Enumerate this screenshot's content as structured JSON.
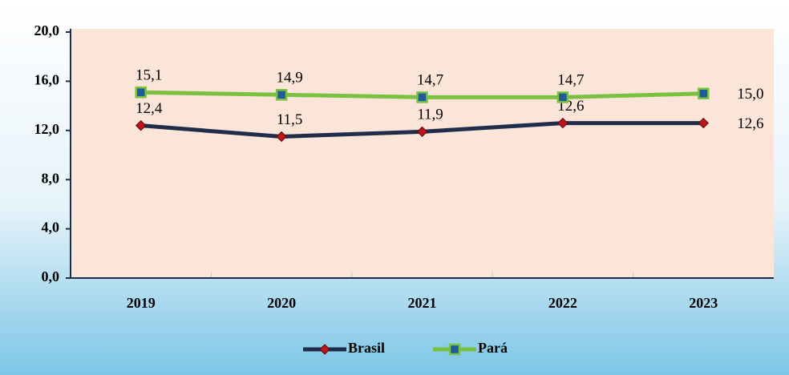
{
  "chart_data": {
    "type": "line",
    "categories": [
      "2019",
      "2020",
      "2021",
      "2022",
      "2023"
    ],
    "series": [
      {
        "name": "Brasil",
        "color": "#1f2d4a",
        "marker_color": "#c0141c",
        "marker": "diamond",
        "values": [
          12.4,
          11.5,
          11.9,
          12.6,
          12.6
        ],
        "value_labels": [
          "12,4",
          "11,5",
          "11,9",
          "12,6",
          "12,6"
        ]
      },
      {
        "name": "Pará",
        "color": "#7ac142",
        "marker_color": "#1f5c99",
        "marker": "square",
        "values": [
          15.1,
          14.9,
          14.7,
          14.7,
          15.0
        ],
        "value_labels": [
          "15,1",
          "14,9",
          "14,7",
          "14,7",
          "15,0"
        ]
      }
    ],
    "ylim": [
      0,
      20
    ],
    "yticks": [
      {
        "value": 0,
        "label": "0,0"
      },
      {
        "value": 4,
        "label": "4,0"
      },
      {
        "value": 8,
        "label": "8,0"
      },
      {
        "value": 12,
        "label": "12,0"
      },
      {
        "value": 16,
        "label": "16,0"
      },
      {
        "value": 20,
        "label": "20,0"
      }
    ],
    "legend": "bottom"
  }
}
